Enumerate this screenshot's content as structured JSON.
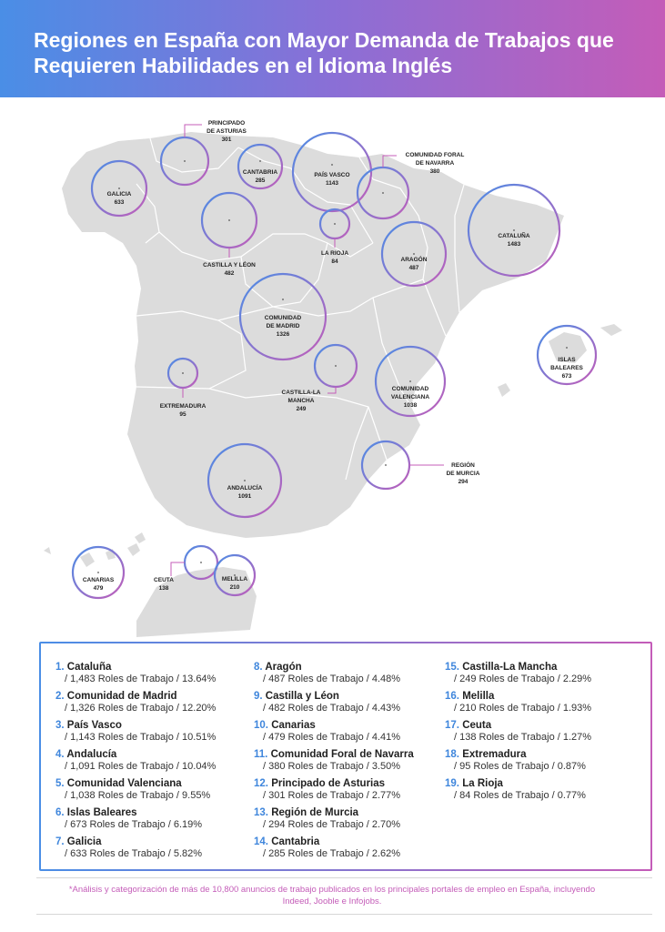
{
  "title": "Regiones en España con Mayor Demanda de Trabajos que Requieren Habilidades en el Idioma Inglés",
  "colors": {
    "blue": "#4a8ee6",
    "pink": "#c45cb8",
    "land": "#dcdcdc"
  },
  "map": {
    "labels": {
      "galicia": [
        "GALICIA",
        "633"
      ],
      "asturias": [
        "PRINCIPADO",
        "DE ASTURIAS",
        "301"
      ],
      "cantabria": [
        "CANTABRIA",
        "285"
      ],
      "paisvasco": [
        "PAÍS VASCO",
        "1143"
      ],
      "navarra": [
        "COMUNIDAD FORAL",
        "DE NAVARRA",
        "380"
      ],
      "castillaleon": [
        "CASTILLA Y LÉON",
        "482"
      ],
      "larioja": [
        "LA RIOJA",
        "84"
      ],
      "aragon": [
        "ARAGÓN",
        "487"
      ],
      "cataluna": [
        "CATALUÑA",
        "1483"
      ],
      "madrid": [
        "COMUNIDAD",
        "DE MADRID",
        "1326"
      ],
      "baleares": [
        "ISLAS",
        "BALEARES",
        "673"
      ],
      "extremadura": [
        "EXTREMADURA",
        "95"
      ],
      "castillamancha": [
        "CASTILLA-LA",
        "MANCHA",
        "249"
      ],
      "valenciana": [
        "COMUNIDAD",
        "VALENCIANA",
        "1038"
      ],
      "murcia": [
        "REGIÓN",
        "DE MURCIA",
        "294"
      ],
      "andalucia": [
        "ANDALUCÍA",
        "1091"
      ],
      "canarias": [
        "CANARIAS",
        "479"
      ],
      "ceuta": [
        "CEUTA",
        "138"
      ],
      "melilla": [
        "MELILLA",
        "210"
      ]
    }
  },
  "ranking": [
    {
      "num": "1.",
      "name": "Cataluña",
      "stats": "/ 1,483 Roles de Trabajo / 13.64%"
    },
    {
      "num": "2.",
      "name": "Comunidad de Madrid",
      "stats": "/ 1,326 Roles de Trabajo  / 12.20%"
    },
    {
      "num": "3.",
      "name": "País Vasco",
      "stats": "/ 1,143 Roles de Trabajo / 10.51%"
    },
    {
      "num": "4.",
      "name": "Andalucía",
      "stats": "/ 1,091 Roles de Trabajo / 10.04%"
    },
    {
      "num": "5.",
      "name": "Comunidad Valenciana",
      "stats": "/ 1,038 Roles de Trabajo / 9.55%"
    },
    {
      "num": "6.",
      "name": "Islas Baleares",
      "stats": "/ 673 Roles de Trabajo / 6.19%"
    },
    {
      "num": "7.",
      "name": "Galicia",
      "stats": "/ 633 Roles de Trabajo / 5.82%"
    },
    {
      "num": "8.",
      "name": "Aragón",
      "stats": "/ 487 Roles de Trabajo / 4.48%"
    },
    {
      "num": "9.",
      "name": "Castilla y Léon",
      "stats": "/ 482 Roles de Trabajo / 4.43%"
    },
    {
      "num": "10.",
      "name": "Canarias",
      "stats": "/ 479 Roles de Trabajo / 4.41%"
    },
    {
      "num": "11.",
      "name": "Comunidad Foral de Navarra",
      "stats": "/ 380 Roles de Trabajo / 3.50%"
    },
    {
      "num": "12.",
      "name": "Principado de Asturias",
      "stats": "/ 301 Roles de Trabajo / 2.77%"
    },
    {
      "num": "13.",
      "name": "Región de Murcia",
      "stats": "/ 294 Roles de Trabajo / 2.70%"
    },
    {
      "num": "14.",
      "name": "Cantabria",
      "stats": "/ 285 Roles de Trabajo / 2.62%"
    },
    {
      "num": "15.",
      "name": "Castilla-La Mancha",
      "stats": "/ 249 Roles de Trabajo / 2.29%"
    },
    {
      "num": "16.",
      "name": "Melilla",
      "stats": "/ 210 Roles de Trabajo / 1.93%"
    },
    {
      "num": "17.",
      "name": "Ceuta",
      "stats": "/ 138 Roles de Trabajo / 1.27%"
    },
    {
      "num": "18.",
      "name": "Extremadura",
      "stats": "/ 95 Roles de Trabajo / 0.87%"
    },
    {
      "num": "19.",
      "name": "La Rioja",
      "stats": "/ 84 Roles de Trabajo / 0.77%"
    }
  ],
  "footnote": "*Análisis y categorización de más de 10,800 anuncios de trabajo publicados en los principales portales de empleo en España, incluyendo Indeed, Jooble e Infojobs."
}
